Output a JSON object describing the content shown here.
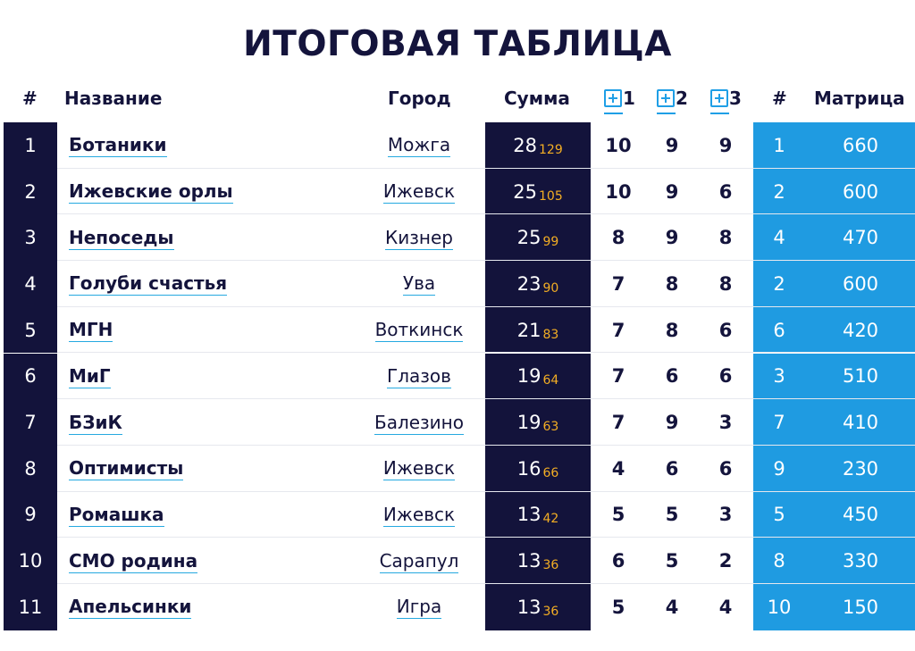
{
  "title": "ИТОГОВАЯ ТАБЛИЦА",
  "headers": {
    "rank": "#",
    "name": "Название",
    "city": "Город",
    "sum": "Сумма",
    "b1": "1",
    "b2": "2",
    "b3": "3",
    "mrank": "#",
    "matrix": "Матрица"
  },
  "colors": {
    "dark": "#13133b",
    "accent_blue": "#1f9be1",
    "sub_orange": "#f3ae24"
  },
  "icons": [
    "plus-box-icon"
  ],
  "rows": [
    {
      "rank": "1",
      "name": "Ботаники",
      "city": "Можга",
      "sum": "28",
      "sum_sub": "129",
      "b1": "10",
      "b2": "9",
      "b3": "9",
      "mrank": "1",
      "matrix": "660"
    },
    {
      "rank": "2",
      "name": "Ижевские орлы",
      "city": "Ижевск",
      "sum": "25",
      "sum_sub": "105",
      "b1": "10",
      "b2": "9",
      "b3": "6",
      "mrank": "2",
      "matrix": "600"
    },
    {
      "rank": "3",
      "name": "Непоседы",
      "city": "Кизнер",
      "sum": "25",
      "sum_sub": "99",
      "b1": "8",
      "b2": "9",
      "b3": "8",
      "mrank": "4",
      "matrix": "470"
    },
    {
      "rank": "4",
      "name": "Голуби счастья",
      "city": "Ува",
      "sum": "23",
      "sum_sub": "90",
      "b1": "7",
      "b2": "8",
      "b3": "8",
      "mrank": "2",
      "matrix": "600"
    },
    {
      "rank": "5",
      "name": "МГН",
      "city": "Воткинск",
      "sum": "21",
      "sum_sub": "83",
      "b1": "7",
      "b2": "8",
      "b3": "6",
      "mrank": "6",
      "matrix": "420"
    },
    {
      "rank": "6",
      "name": "МиГ",
      "city": "Глазов",
      "sum": "19",
      "sum_sub": "64",
      "b1": "7",
      "b2": "6",
      "b3": "6",
      "mrank": "3",
      "matrix": "510"
    },
    {
      "rank": "7",
      "name": "БЗиК",
      "city": "Балезино",
      "sum": "19",
      "sum_sub": "63",
      "b1": "7",
      "b2": "9",
      "b3": "3",
      "mrank": "7",
      "matrix": "410"
    },
    {
      "rank": "8",
      "name": "Оптимисты",
      "city": "Ижевск",
      "sum": "16",
      "sum_sub": "66",
      "b1": "4",
      "b2": "6",
      "b3": "6",
      "mrank": "9",
      "matrix": "230"
    },
    {
      "rank": "9",
      "name": "Ромашка",
      "city": "Ижевск",
      "sum": "13",
      "sum_sub": "42",
      "b1": "5",
      "b2": "5",
      "b3": "3",
      "mrank": "5",
      "matrix": "450"
    },
    {
      "rank": "10",
      "name": "СМО родина",
      "city": "Сарапул",
      "sum": "13",
      "sum_sub": "36",
      "b1": "6",
      "b2": "5",
      "b3": "2",
      "mrank": "8",
      "matrix": "330"
    },
    {
      "rank": "11",
      "name": "Апельсинки",
      "city": "Игра",
      "sum": "13",
      "sum_sub": "36",
      "b1": "5",
      "b2": "4",
      "b3": "4",
      "mrank": "10",
      "matrix": "150"
    }
  ]
}
